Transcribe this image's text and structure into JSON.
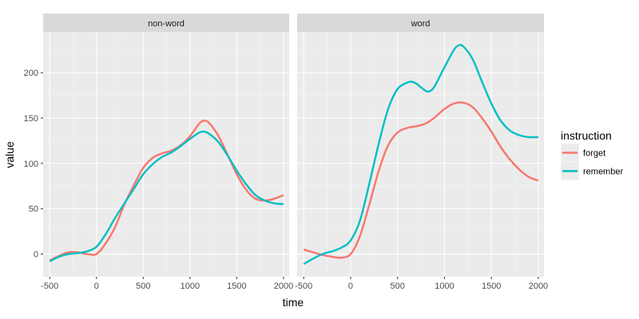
{
  "chart_data": {
    "type": "line",
    "xlabel": "time",
    "ylabel": "value",
    "xlim": [
      -570,
      2060
    ],
    "ylim": [
      -25,
      245
    ],
    "xticks": [
      -500,
      0,
      500,
      1000,
      1500,
      2000
    ],
    "yticks": [
      0,
      50,
      100,
      150,
      200
    ],
    "xtick_labels": [
      "-500",
      "0",
      "500",
      "1000",
      "1500",
      "2000"
    ],
    "ytick_labels": [
      "0",
      "50",
      "100",
      "150",
      "200"
    ],
    "grid": true,
    "legend": {
      "title": "instruction",
      "position": "right",
      "entries": [
        {
          "name": "forget",
          "color": "#F8766D"
        },
        {
          "name": "remember",
          "color": "#00BFC4"
        }
      ]
    },
    "facets": [
      {
        "label": "non-word",
        "series": [
          {
            "name": "forget",
            "color": "#F8766D",
            "x": [
              -500,
              -400,
              -300,
              -200,
              -100,
              0,
              100,
              200,
              300,
              400,
              500,
              600,
              700,
              800,
              900,
              1000,
              1100,
              1150,
              1200,
              1300,
              1400,
              1500,
              1600,
              1700,
              1800,
              1900,
              2000
            ],
            "y": [
              -7,
              -2,
              2,
              2,
              0,
              0,
              12,
              30,
              55,
              76,
              95,
              106,
              111,
              114,
              120,
              130,
              144,
              147,
              145,
              131,
              110,
              88,
              71,
              61,
              59,
              61,
              65
            ]
          },
          {
            "name": "remember",
            "color": "#00BFC4",
            "x": [
              -500,
              -400,
              -300,
              -200,
              -100,
              0,
              100,
              200,
              300,
              400,
              500,
              600,
              700,
              800,
              900,
              1000,
              1100,
              1150,
              1200,
              1300,
              1400,
              1500,
              1600,
              1700,
              1800,
              1900,
              2000
            ],
            "y": [
              -8,
              -3,
              0,
              1,
              3,
              8,
              22,
              40,
              56,
              72,
              88,
              99,
              107,
              112,
              119,
              127,
              134,
              135,
              133,
              124,
              109,
              92,
              77,
              65,
              59,
              56,
              55
            ]
          }
        ]
      },
      {
        "label": "word",
        "series": [
          {
            "name": "forget",
            "color": "#F8766D",
            "x": [
              -500,
              -400,
              -300,
              -200,
              -100,
              0,
              100,
              200,
              300,
              400,
              500,
              600,
              700,
              800,
              900,
              1000,
              1100,
              1200,
              1300,
              1400,
              1500,
              1600,
              1700,
              1800,
              1900,
              2000
            ],
            "y": [
              5,
              2,
              -1,
              -3,
              -4,
              0,
              20,
              55,
              92,
              120,
              134,
              139,
              141,
              144,
              151,
              160,
              166,
              167,
              162,
              150,
              135,
              118,
              104,
              93,
              85,
              81
            ]
          },
          {
            "name": "remember",
            "color": "#00BFC4",
            "x": [
              -500,
              -400,
              -300,
              -200,
              -100,
              0,
              100,
              200,
              300,
              400,
              500,
              600,
              650,
              700,
              800,
              850,
              900,
              1000,
              1100,
              1150,
              1200,
              1300,
              1400,
              1500,
              1600,
              1700,
              1800,
              1900,
              2000
            ],
            "y": [
              -11,
              -5,
              0,
              3,
              7,
              15,
              37,
              78,
              122,
              160,
              182,
              189,
              190,
              188,
              180,
              180,
              186,
              206,
              225,
              230,
              229,
              215,
              190,
              166,
              147,
              136,
              131,
              129,
              129
            ]
          }
        ]
      }
    ]
  }
}
